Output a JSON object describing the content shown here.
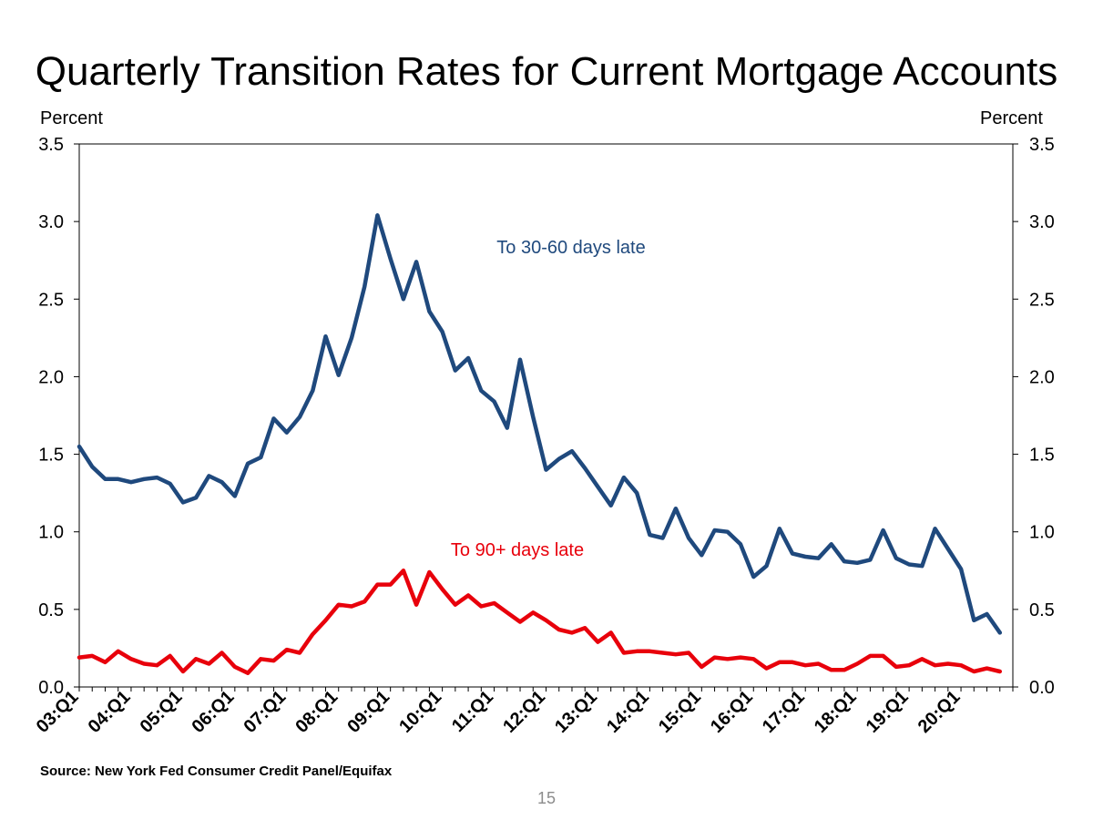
{
  "page": {
    "title": "Quarterly Transition Rates for Current Mortgage Accounts",
    "left_axis_unit": "Percent",
    "right_axis_unit": "Percent",
    "source": "Source: New York Fed Consumer Credit Panel/Equifax",
    "page_number": "15"
  },
  "chart_data": {
    "type": "line",
    "title": "Quarterly Transition Rates for Current Mortgage Accounts",
    "ylabel": "Percent",
    "y2label": "Percent",
    "ylim": [
      0,
      3.5
    ],
    "yticks": [
      "0.0",
      "0.5",
      "1.0",
      "1.5",
      "2.0",
      "2.5",
      "3.0",
      "3.5"
    ],
    "x_start": "03:Q1",
    "x_end": "20:Q4",
    "xtick_labels": [
      "03:Q1",
      "04:Q1",
      "05:Q1",
      "06:Q1",
      "07:Q1",
      "08:Q1",
      "09:Q1",
      "10:Q1",
      "11:Q1",
      "12:Q1",
      "13:Q1",
      "14:Q1",
      "15:Q1",
      "16:Q1",
      "17:Q1",
      "18:Q1",
      "19:Q1",
      "20:Q1"
    ],
    "grid": false,
    "series": [
      {
        "name": "To 30-60 days late",
        "color": "#1f497d",
        "values": [
          1.55,
          1.42,
          1.34,
          1.34,
          1.32,
          1.34,
          1.35,
          1.31,
          1.19,
          1.22,
          1.36,
          1.32,
          1.23,
          1.44,
          1.48,
          1.73,
          1.64,
          1.74,
          1.91,
          2.26,
          2.01,
          2.25,
          2.58,
          3.04,
          2.76,
          2.5,
          2.74,
          2.42,
          2.29,
          2.04,
          2.12,
          1.91,
          1.84,
          1.67,
          2.11,
          1.74,
          1.4,
          1.47,
          1.52,
          1.41,
          1.29,
          1.17,
          1.35,
          1.25,
          0.98,
          0.96,
          1.15,
          0.96,
          0.85,
          1.01,
          1.0,
          0.92,
          0.71,
          0.78,
          1.02,
          0.86,
          0.84,
          0.83,
          0.92,
          0.81,
          0.8,
          0.82,
          1.01,
          0.83,
          0.79,
          0.78,
          1.02,
          0.89,
          0.76,
          0.43,
          0.47,
          0.35
        ]
      },
      {
        "name": "To 90+ days late",
        "color": "#e8000b",
        "values": [
          0.19,
          0.2,
          0.16,
          0.23,
          0.18,
          0.15,
          0.14,
          0.2,
          0.1,
          0.18,
          0.15,
          0.22,
          0.13,
          0.09,
          0.18,
          0.17,
          0.24,
          0.22,
          0.34,
          0.43,
          0.53,
          0.52,
          0.55,
          0.66,
          0.66,
          0.75,
          0.53,
          0.74,
          0.63,
          0.53,
          0.59,
          0.52,
          0.54,
          0.48,
          0.42,
          0.48,
          0.43,
          0.37,
          0.35,
          0.38,
          0.29,
          0.35,
          0.22,
          0.23,
          0.23,
          0.22,
          0.21,
          0.22,
          0.13,
          0.19,
          0.18,
          0.19,
          0.18,
          0.12,
          0.16,
          0.16,
          0.14,
          0.15,
          0.11,
          0.11,
          0.15,
          0.2,
          0.2,
          0.13,
          0.14,
          0.18,
          0.14,
          0.15,
          0.14,
          0.1,
          0.12,
          0.1
        ]
      }
    ]
  }
}
